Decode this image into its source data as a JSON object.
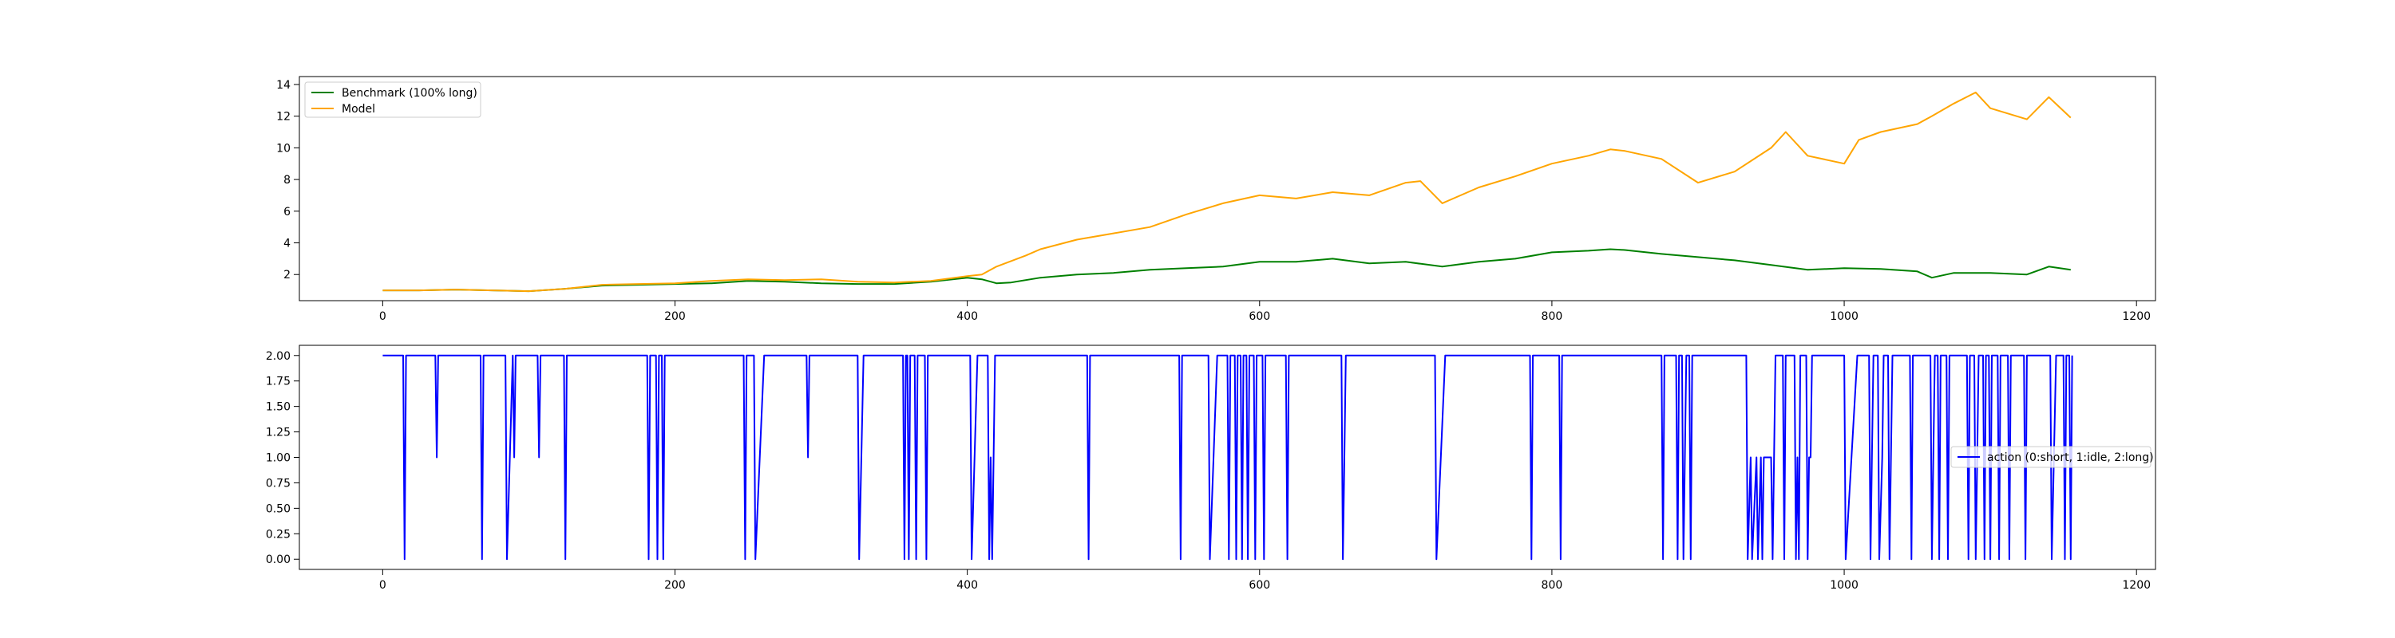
{
  "chart_data": [
    {
      "type": "line",
      "xlim": [
        -57,
        1213
      ],
      "ylim": [
        0.35,
        14.5
      ],
      "x_ticks": [
        0,
        200,
        400,
        600,
        800,
        1000,
        1200
      ],
      "y_ticks": [
        2,
        4,
        6,
        8,
        10,
        12,
        14
      ],
      "grid": false,
      "legend_position": "top-left",
      "series": [
        {
          "name": "Benchmark (100% long)",
          "color": "#008000",
          "x": [
            0,
            25,
            50,
            75,
            100,
            125,
            150,
            175,
            200,
            225,
            250,
            275,
            300,
            325,
            350,
            375,
            400,
            410,
            420,
            430,
            450,
            475,
            500,
            525,
            550,
            575,
            600,
            625,
            650,
            675,
            700,
            725,
            750,
            775,
            800,
            825,
            840,
            850,
            875,
            900,
            925,
            950,
            975,
            1000,
            1025,
            1050,
            1060,
            1075,
            1100,
            1125,
            1140,
            1155
          ],
          "y": [
            1.0,
            1.0,
            1.05,
            1.0,
            0.95,
            1.1,
            1.3,
            1.35,
            1.4,
            1.45,
            1.6,
            1.55,
            1.45,
            1.4,
            1.4,
            1.55,
            1.8,
            1.7,
            1.45,
            1.5,
            1.8,
            2.0,
            2.1,
            2.3,
            2.4,
            2.5,
            2.8,
            2.8,
            3.0,
            2.7,
            2.8,
            2.5,
            2.8,
            3.0,
            3.4,
            3.5,
            3.6,
            3.55,
            3.3,
            3.1,
            2.9,
            2.6,
            2.3,
            2.4,
            2.35,
            2.2,
            1.8,
            2.1,
            2.1,
            2.0,
            2.5,
            2.3
          ]
        },
        {
          "name": "Model",
          "color": "#ffa500",
          "x": [
            0,
            25,
            50,
            75,
            100,
            125,
            150,
            175,
            200,
            225,
            250,
            275,
            300,
            325,
            350,
            375,
            400,
            410,
            420,
            440,
            450,
            475,
            500,
            525,
            550,
            575,
            600,
            625,
            650,
            675,
            700,
            710,
            725,
            750,
            775,
            800,
            825,
            840,
            850,
            875,
            900,
            925,
            950,
            960,
            975,
            1000,
            1010,
            1025,
            1050,
            1060,
            1075,
            1090,
            1100,
            1125,
            1140,
            1155
          ],
          "y": [
            1.0,
            1.0,
            1.05,
            1.0,
            0.95,
            1.1,
            1.35,
            1.4,
            1.45,
            1.6,
            1.7,
            1.65,
            1.7,
            1.55,
            1.5,
            1.6,
            1.9,
            2.0,
            2.5,
            3.2,
            3.6,
            4.2,
            4.6,
            5.0,
            5.8,
            6.5,
            7.0,
            6.8,
            7.2,
            7.0,
            7.8,
            7.9,
            6.5,
            7.5,
            8.2,
            9.0,
            9.5,
            9.9,
            9.8,
            9.3,
            7.8,
            8.5,
            10.0,
            11.0,
            9.5,
            9.0,
            10.5,
            11.0,
            11.5,
            12.0,
            12.8,
            13.5,
            12.5,
            11.8,
            13.2,
            11.9
          ]
        }
      ]
    },
    {
      "type": "line",
      "xlim": [
        -57,
        1213
      ],
      "ylim": [
        -0.1,
        2.1
      ],
      "x_ticks": [
        0,
        200,
        400,
        600,
        800,
        1000,
        1200
      ],
      "y_ticks": [
        "0.00",
        "0.25",
        "0.50",
        "0.75",
        "1.00",
        "1.25",
        "1.50",
        "1.75",
        "2.00"
      ],
      "grid": false,
      "legend_position": "center-right",
      "series": [
        {
          "name": "action (0:short, 1:idle, 2:long)",
          "color": "#0000ff",
          "segments": [
            [
              0,
              2
            ],
            [
              14,
              2
            ],
            [
              15,
              0
            ],
            [
              16,
              2
            ],
            [
              36,
              2
            ],
            [
              37,
              1
            ],
            [
              38,
              2
            ],
            [
              67,
              2
            ],
            [
              68,
              0
            ],
            [
              69,
              2
            ],
            [
              84,
              2
            ],
            [
              85,
              0
            ],
            [
              89,
              2
            ],
            [
              90,
              1
            ],
            [
              91,
              2
            ],
            [
              106,
              2
            ],
            [
              107,
              1
            ],
            [
              108,
              2
            ],
            [
              124,
              2
            ],
            [
              125,
              0
            ],
            [
              126,
              2
            ],
            [
              181,
              2
            ],
            [
              182,
              0
            ],
            [
              183,
              2
            ],
            [
              187,
              2
            ],
            [
              188,
              0
            ],
            [
              189,
              2
            ],
            [
              191,
              2
            ],
            [
              192,
              0
            ],
            [
              193,
              2
            ],
            [
              247,
              2
            ],
            [
              248,
              0
            ],
            [
              249,
              2
            ],
            [
              254,
              2
            ],
            [
              255,
              0
            ],
            [
              261,
              2
            ],
            [
              290,
              2
            ],
            [
              291,
              1
            ],
            [
              292,
              2
            ],
            [
              325,
              2
            ],
            [
              326,
              0
            ],
            [
              329,
              2
            ],
            [
              356,
              2
            ],
            [
              357,
              0
            ],
            [
              358,
              2
            ],
            [
              359,
              2
            ],
            [
              360,
              0
            ],
            [
              361,
              2
            ],
            [
              364,
              2
            ],
            [
              365,
              0
            ],
            [
              366,
              2
            ],
            [
              371,
              2
            ],
            [
              372,
              0
            ],
            [
              373,
              2
            ],
            [
              402,
              2
            ],
            [
              403,
              0
            ],
            [
              407,
              2
            ],
            [
              414,
              2
            ],
            [
              415,
              0
            ],
            [
              416,
              1
            ],
            [
              417,
              0
            ],
            [
              419,
              2
            ],
            [
              482,
              2
            ],
            [
              483,
              0
            ],
            [
              484,
              2
            ],
            [
              545,
              2
            ],
            [
              546,
              0
            ],
            [
              547,
              2
            ],
            [
              565,
              2
            ],
            [
              566,
              0
            ],
            [
              571,
              2
            ],
            [
              578,
              2
            ],
            [
              579,
              0
            ],
            [
              580,
              2
            ],
            [
              583,
              2
            ],
            [
              584,
              0
            ],
            [
              585,
              2
            ],
            [
              587,
              2
            ],
            [
              588,
              0
            ],
            [
              589,
              2
            ],
            [
              591,
              2
            ],
            [
              592,
              0
            ],
            [
              593,
              2
            ],
            [
              596,
              2
            ],
            [
              597,
              0
            ],
            [
              598,
              2
            ],
            [
              602,
              2
            ],
            [
              603,
              0
            ],
            [
              604,
              2
            ],
            [
              618,
              2
            ],
            [
              619,
              0
            ],
            [
              620,
              2
            ],
            [
              656,
              2
            ],
            [
              657,
              0
            ],
            [
              658,
              1
            ],
            [
              659,
              2
            ],
            [
              720,
              2
            ],
            [
              721,
              0
            ],
            [
              727,
              2
            ],
            [
              785,
              2
            ],
            [
              786,
              0
            ],
            [
              787,
              2
            ],
            [
              805,
              2
            ],
            [
              806,
              0
            ],
            [
              807,
              2
            ],
            [
              875,
              2
            ],
            [
              876,
              0
            ],
            [
              877,
              2
            ],
            [
              885,
              2
            ],
            [
              886,
              0
            ],
            [
              887,
              2
            ],
            [
              889,
              2
            ],
            [
              890,
              0
            ],
            [
              892,
              2
            ],
            [
              894,
              2
            ],
            [
              895,
              0
            ],
            [
              896,
              2
            ],
            [
              933,
              2
            ],
            [
              934,
              0
            ],
            [
              936,
              1
            ],
            [
              937,
              0
            ],
            [
              940,
              1
            ],
            [
              941,
              0
            ],
            [
              943,
              1
            ],
            [
              944,
              0
            ],
            [
              945,
              1
            ],
            [
              950,
              1
            ],
            [
              951,
              0
            ],
            [
              953,
              2
            ],
            [
              958,
              2
            ],
            [
              959,
              0
            ],
            [
              960,
              2
            ],
            [
              966,
              2
            ],
            [
              967,
              0
            ],
            [
              968,
              1
            ],
            [
              969,
              0
            ],
            [
              970,
              2
            ],
            [
              974,
              2
            ],
            [
              975,
              0
            ],
            [
              976,
              1
            ],
            [
              977,
              1
            ],
            [
              978,
              2
            ],
            [
              1000,
              2
            ],
            [
              1001,
              0
            ],
            [
              1009,
              2
            ],
            [
              1017,
              2
            ],
            [
              1018,
              0
            ],
            [
              1019,
              1
            ],
            [
              1020,
              2
            ],
            [
              1023,
              2
            ],
            [
              1024,
              0
            ],
            [
              1026,
              1
            ],
            [
              1027,
              2
            ],
            [
              1030,
              2
            ],
            [
              1031,
              0
            ],
            [
              1033,
              2
            ],
            [
              1045,
              2
            ],
            [
              1046,
              0
            ],
            [
              1047,
              2
            ],
            [
              1059,
              2
            ],
            [
              1060,
              0
            ],
            [
              1061,
              1
            ],
            [
              1062,
              2
            ],
            [
              1064,
              2
            ],
            [
              1065,
              0
            ],
            [
              1066,
              2
            ],
            [
              1070,
              2
            ],
            [
              1071,
              0
            ],
            [
              1072,
              2
            ],
            [
              1084,
              2
            ],
            [
              1085,
              0
            ],
            [
              1086,
              2
            ],
            [
              1089,
              2
            ],
            [
              1090,
              0
            ],
            [
              1091,
              1
            ],
            [
              1092,
              2
            ],
            [
              1095,
              2
            ],
            [
              1096,
              0
            ],
            [
              1097,
              2
            ],
            [
              1099,
              2
            ],
            [
              1100,
              0
            ],
            [
              1101,
              2
            ],
            [
              1105,
              2
            ],
            [
              1106,
              0
            ],
            [
              1107,
              2
            ],
            [
              1112,
              2
            ],
            [
              1113,
              0
            ],
            [
              1114,
              2
            ],
            [
              1123,
              2
            ],
            [
              1124,
              0
            ],
            [
              1125,
              2
            ],
            [
              1141,
              2
            ],
            [
              1142,
              0
            ],
            [
              1145,
              2
            ],
            [
              1150,
              2
            ],
            [
              1151,
              0
            ],
            [
              1152,
              2
            ],
            [
              1154,
              2
            ],
            [
              1155,
              0
            ],
            [
              1156,
              2
            ]
          ]
        }
      ]
    }
  ]
}
